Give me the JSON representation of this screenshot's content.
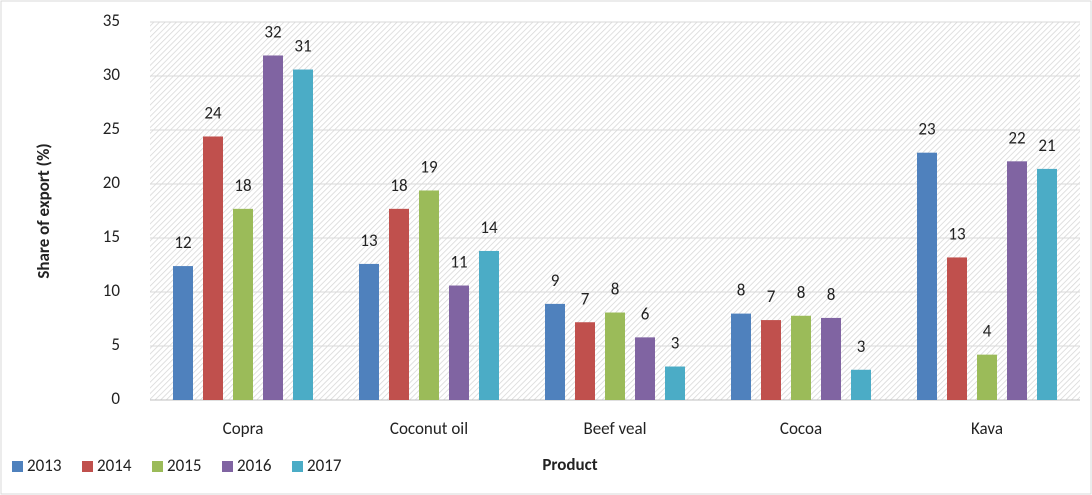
{
  "chart_data": {
    "type": "bar",
    "y_label": "Share of export (%)",
    "x_label": "Product",
    "categories": [
      "Copra",
      "Coconut oil",
      "Beef veal",
      "Cocoa",
      "Kava"
    ],
    "series": [
      {
        "name": "2013",
        "color": "#4f81bd",
        "values": [
          12.4,
          12.6,
          8.9,
          8.0,
          22.9
        ],
        "value_labels": [
          "12",
          "13",
          "9",
          "8",
          "23"
        ]
      },
      {
        "name": "2014",
        "color": "#c0504d",
        "values": [
          24.4,
          17.7,
          7.2,
          7.4,
          13.2
        ],
        "value_labels": [
          "24",
          "18",
          "7",
          "7",
          "13"
        ]
      },
      {
        "name": "2015",
        "color": "#9bbb59",
        "values": [
          17.7,
          19.4,
          8.1,
          7.8,
          4.2
        ],
        "value_labels": [
          "18",
          "19",
          "8",
          "8",
          "4"
        ]
      },
      {
        "name": "2016",
        "color": "#8064a2",
        "values": [
          31.9,
          10.6,
          5.8,
          7.6,
          22.1
        ],
        "value_labels": [
          "32",
          "11",
          "6",
          "8",
          "22"
        ]
      },
      {
        "name": "2017",
        "color": "#4bacc6",
        "values": [
          30.6,
          13.8,
          3.1,
          2.8,
          21.4
        ],
        "value_labels": [
          "31",
          "14",
          "3",
          "3",
          "21"
        ]
      }
    ],
    "ylim": [
      0,
      35
    ],
    "yticks": [
      0,
      5,
      10,
      15,
      20,
      25,
      30,
      35
    ],
    "grid": true
  }
}
